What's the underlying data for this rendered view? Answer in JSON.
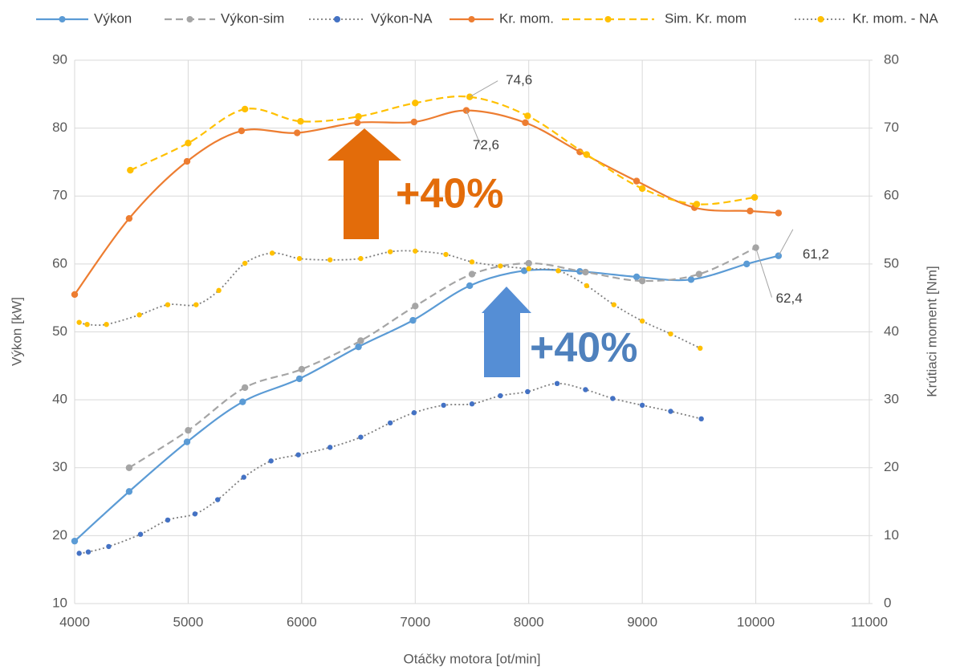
{
  "chart_data": {
    "type": "line",
    "x_label": "Otáčky motora [ot/min]",
    "y_label": "Výkon [kW]",
    "y2_label": "Krútiaci moment [Nm]",
    "xlim": [
      4000,
      11000
    ],
    "xticks": [
      4000,
      5000,
      6000,
      7000,
      8000,
      9000,
      10000,
      11000
    ],
    "ylim": [
      10,
      90
    ],
    "yticks": [
      10,
      20,
      30,
      40,
      50,
      60,
      70,
      80,
      90
    ],
    "y2lim": [
      0,
      80
    ],
    "y2ticks": [
      0,
      10,
      20,
      30,
      40,
      50,
      60,
      70,
      80
    ],
    "grid": true,
    "legend": "top",
    "annotations": [
      "+40%",
      "+40%"
    ],
    "series": [
      {
        "name": "Výkon",
        "color": "#5b9bd5",
        "marker_color": "#5b9bd5",
        "line_style": "solid",
        "axis": "y",
        "x": [
          4000,
          4480,
          4990,
          5480,
          5980,
          6500,
          6980,
          7480,
          7960,
          8450,
          8950,
          9430,
          9920,
          10200
        ],
        "values": [
          19.2,
          26.5,
          33.8,
          39.7,
          43.1,
          47.8,
          51.7,
          56.8,
          59,
          58.9,
          58.1,
          57.7,
          60,
          61.2
        ],
        "value_labels": [
          null,
          null,
          null,
          null,
          null,
          null,
          null,
          null,
          null,
          null,
          null,
          null,
          null,
          "61,2"
        ]
      },
      {
        "name": "Výkon-sim",
        "color": "#a5a5a5",
        "marker_color": "#a5a5a5",
        "line_style": "dashed",
        "axis": "y",
        "x": [
          4480,
          5000,
          5500,
          6000,
          6520,
          7000,
          7500,
          8000,
          8500,
          9000,
          9500,
          10000
        ],
        "values": [
          30,
          35.5,
          41.8,
          44.5,
          48.7,
          53.8,
          58.5,
          60.1,
          58.8,
          57.5,
          58.5,
          62.4
        ],
        "value_labels": [
          null,
          null,
          null,
          null,
          null,
          null,
          null,
          null,
          null,
          null,
          null,
          "62,4"
        ]
      },
      {
        "name": "Výkon-NA",
        "color": "#7f7f7f",
        "marker_color": "#4472c4",
        "line_style": "dotted",
        "axis": "y",
        "x": [
          4040,
          4120,
          4300,
          4580,
          4820,
          5060,
          5260,
          5490,
          5730,
          5970,
          6250,
          6520,
          6780,
          6990,
          7250,
          7500,
          7750,
          7990,
          8250,
          8500,
          8740,
          9000,
          9250,
          9520
        ],
        "values": [
          17.4,
          17.6,
          18.4,
          20.2,
          22.3,
          23.2,
          25.3,
          28.6,
          31,
          31.9,
          33,
          34.5,
          36.6,
          38.1,
          39.2,
          39.4,
          40.6,
          41.2,
          42.4,
          41.5,
          40.2,
          39.2,
          38.3,
          37.2
        ]
      },
      {
        "name": "Kr. mom.",
        "color": "#ed7d31",
        "marker_color": "#ed7d31",
        "line_style": "solid",
        "axis": "y2",
        "x": [
          4000,
          4480,
          4990,
          5470,
          5960,
          6490,
          6990,
          7450,
          7970,
          8450,
          8950,
          9460,
          9950,
          10200
        ],
        "values": [
          45.5,
          56.7,
          65.1,
          69.6,
          69.3,
          70.8,
          70.9,
          72.6,
          70.8,
          66.5,
          62.2,
          58.3,
          57.8,
          57.5
        ],
        "value_labels": [
          null,
          null,
          null,
          null,
          null,
          null,
          null,
          "72,6",
          null,
          null,
          null,
          null,
          null,
          null
        ]
      },
      {
        "name": "Sim. Kr. mom",
        "color": "#ffc000",
        "marker_color": "#ffc000",
        "line_style": "dashed",
        "axis": "y2",
        "x": [
          4490,
          5000,
          5500,
          5990,
          6500,
          7000,
          7480,
          7990,
          8510,
          9000,
          9480,
          9990
        ],
        "values": [
          63.8,
          67.8,
          72.8,
          71,
          71.7,
          73.7,
          74.6,
          71.8,
          66.1,
          61.1,
          58.8,
          59.8
        ],
        "value_labels": [
          null,
          null,
          null,
          null,
          null,
          null,
          "74,6",
          null,
          null,
          null,
          null,
          null
        ]
      },
      {
        "name": "Kr. mom. - NA",
        "color": "#7f7f7f",
        "marker_color": "#ffc000",
        "line_style": "dotted",
        "axis": "y2",
        "x": [
          4040,
          4110,
          4280,
          4570,
          4820,
          5070,
          5270,
          5500,
          5740,
          5980,
          6250,
          6520,
          6780,
          7000,
          7270,
          7500,
          7750,
          8000,
          8260,
          8510,
          8750,
          9000,
          9250,
          9510
        ],
        "values": [
          41.4,
          41.1,
          41.1,
          42.5,
          44,
          44,
          46.1,
          50.1,
          51.6,
          50.8,
          50.6,
          50.8,
          51.8,
          51.9,
          51.4,
          50.3,
          49.7,
          49.3,
          49,
          46.8,
          44,
          41.6,
          39.7,
          37.6
        ]
      }
    ]
  }
}
